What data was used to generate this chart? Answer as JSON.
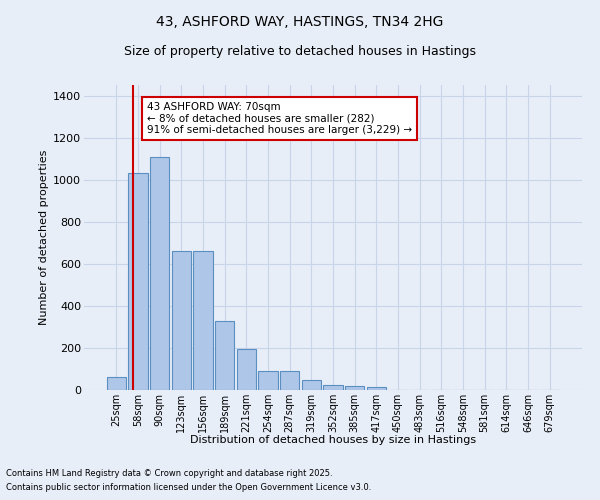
{
  "title1": "43, ASHFORD WAY, HASTINGS, TN34 2HG",
  "title2": "Size of property relative to detached houses in Hastings",
  "xlabel": "Distribution of detached houses by size in Hastings",
  "ylabel": "Number of detached properties",
  "categories": [
    "25sqm",
    "58sqm",
    "90sqm",
    "123sqm",
    "156sqm",
    "189sqm",
    "221sqm",
    "254sqm",
    "287sqm",
    "319sqm",
    "352sqm",
    "385sqm",
    "417sqm",
    "450sqm",
    "483sqm",
    "516sqm",
    "548sqm",
    "581sqm",
    "614sqm",
    "646sqm",
    "679sqm"
  ],
  "values": [
    60,
    1030,
    1110,
    660,
    660,
    330,
    195,
    90,
    90,
    48,
    25,
    20,
    12,
    0,
    0,
    0,
    0,
    0,
    0,
    0,
    0
  ],
  "bar_color": "#aec6e8",
  "bar_edge_color": "#5a8fc2",
  "background_color": "#e8eef8",
  "grid_color": "#c8d4e8",
  "vline_color": "#cc0000",
  "annotation_text": "43 ASHFORD WAY: 70sqm\n← 8% of detached houses are smaller (282)\n91% of semi-detached houses are larger (3,229) →",
  "annotation_box_color": "#ffffff",
  "annotation_box_edge": "#cc0000",
  "ylim": [
    0,
    1450
  ],
  "yticks": [
    0,
    200,
    400,
    600,
    800,
    1000,
    1200,
    1400
  ],
  "footnote1": "Contains HM Land Registry data © Crown copyright and database right 2025.",
  "footnote2": "Contains public sector information licensed under the Open Government Licence v3.0."
}
